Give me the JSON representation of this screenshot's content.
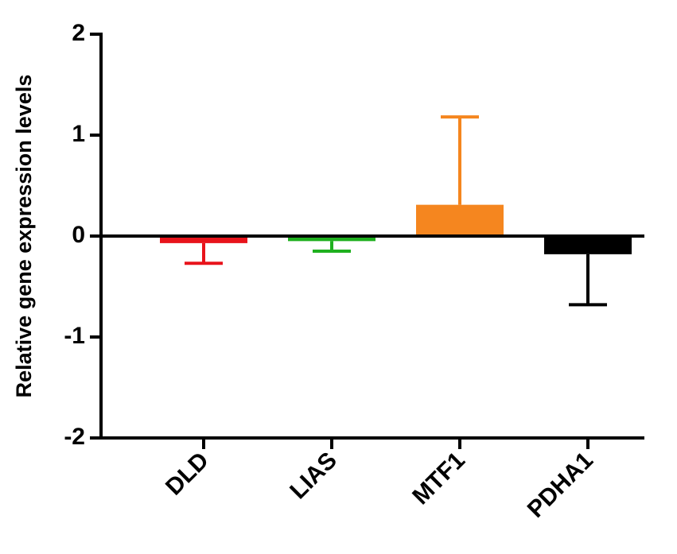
{
  "chart_data": {
    "type": "bar",
    "y_label": "Relative gene expression levels",
    "categories": [
      "DLD",
      "LIAS",
      "MTF1",
      "PDHA1"
    ],
    "values": [
      -0.07,
      -0.05,
      0.31,
      -0.18
    ],
    "errors": [
      0.2,
      0.1,
      0.87,
      0.5
    ],
    "colors": [
      "#e8131b",
      "#1fb01f",
      "#f5861f",
      "#000000"
    ],
    "ylim": [
      -2,
      2
    ],
    "yticks": [
      -2,
      -1,
      0,
      1,
      2
    ]
  }
}
